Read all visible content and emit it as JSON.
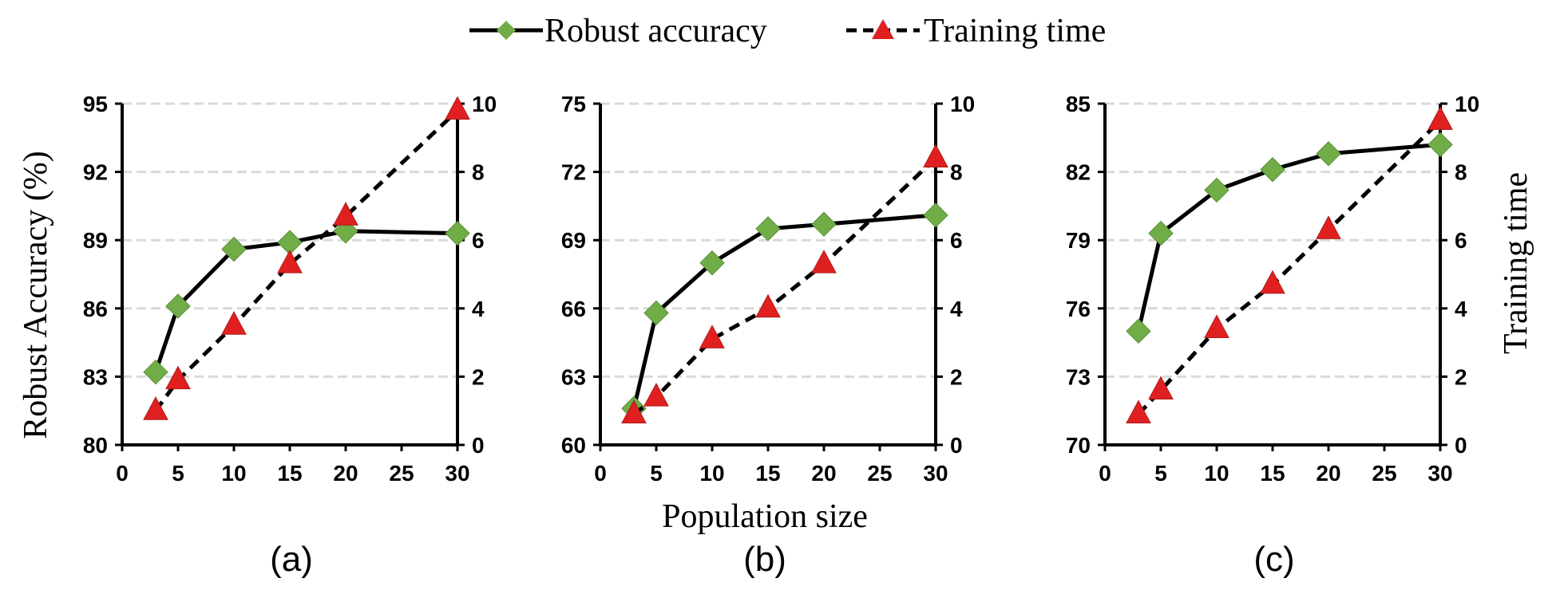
{
  "legend": {
    "accuracy_label": "Robust accuracy",
    "time_label": "Training time"
  },
  "axes": {
    "left_title": "Robust Accuracy (%)",
    "right_title": "Training time",
    "x_title": "Population size"
  },
  "colors": {
    "accuracy_marker": "#70ad47",
    "time_marker": "#e02020",
    "line": "#000000",
    "grid": "#d9d9d9"
  },
  "chart_data": [
    {
      "type": "line",
      "panel_label": "(a)",
      "x": [
        3,
        5,
        10,
        15,
        20,
        30
      ],
      "x_ticks": [
        0,
        5,
        10,
        15,
        20,
        25,
        30
      ],
      "xlim": [
        0,
        30
      ],
      "ylim_left": [
        80,
        95
      ],
      "y_ticks_left": [
        80,
        83,
        86,
        89,
        92,
        95
      ],
      "ylim_right": [
        0,
        10
      ],
      "y_ticks_right": [
        0,
        2,
        4,
        6,
        8,
        10
      ],
      "grid": true,
      "series": [
        {
          "name": "Robust accuracy",
          "axis": "left",
          "style": "solid",
          "marker": "diamond",
          "values": [
            83.2,
            86.1,
            88.6,
            88.9,
            89.4,
            89.3
          ]
        },
        {
          "name": "Training time",
          "axis": "right",
          "style": "dashed",
          "marker": "triangle",
          "values": [
            1.0,
            1.9,
            3.5,
            5.3,
            6.7,
            9.8
          ]
        }
      ]
    },
    {
      "type": "line",
      "panel_label": "(b)",
      "x": [
        3,
        5,
        10,
        15,
        20,
        30
      ],
      "x_ticks": [
        0,
        5,
        10,
        15,
        20,
        25,
        30
      ],
      "xlim": [
        0,
        30
      ],
      "ylim_left": [
        60,
        75
      ],
      "y_ticks_left": [
        60,
        63,
        66,
        69,
        72,
        75
      ],
      "ylim_right": [
        0,
        10
      ],
      "y_ticks_right": [
        0,
        2,
        4,
        6,
        8,
        10
      ],
      "grid": true,
      "series": [
        {
          "name": "Robust accuracy",
          "axis": "left",
          "style": "solid",
          "marker": "diamond",
          "values": [
            61.6,
            65.8,
            68.0,
            69.5,
            69.7,
            70.1
          ]
        },
        {
          "name": "Training time",
          "axis": "right",
          "style": "dashed",
          "marker": "triangle",
          "values": [
            0.9,
            1.4,
            3.1,
            4.0,
            5.3,
            8.4
          ]
        }
      ]
    },
    {
      "type": "line",
      "panel_label": "(c)",
      "x": [
        3,
        5,
        10,
        15,
        20,
        30
      ],
      "x_ticks": [
        0,
        5,
        10,
        15,
        20,
        25,
        30
      ],
      "xlim": [
        0,
        30
      ],
      "ylim_left": [
        70,
        85
      ],
      "y_ticks_left": [
        70,
        73,
        76,
        79,
        82,
        85
      ],
      "ylim_right": [
        0,
        10
      ],
      "y_ticks_right": [
        0,
        2,
        4,
        6,
        8,
        10
      ],
      "grid": true,
      "series": [
        {
          "name": "Robust accuracy",
          "axis": "left",
          "style": "solid",
          "marker": "diamond",
          "values": [
            75.0,
            79.3,
            81.2,
            82.1,
            82.8,
            83.2
          ]
        },
        {
          "name": "Training time",
          "axis": "right",
          "style": "dashed",
          "marker": "triangle",
          "values": [
            0.9,
            1.6,
            3.4,
            4.7,
            6.3,
            9.5
          ]
        }
      ]
    }
  ]
}
